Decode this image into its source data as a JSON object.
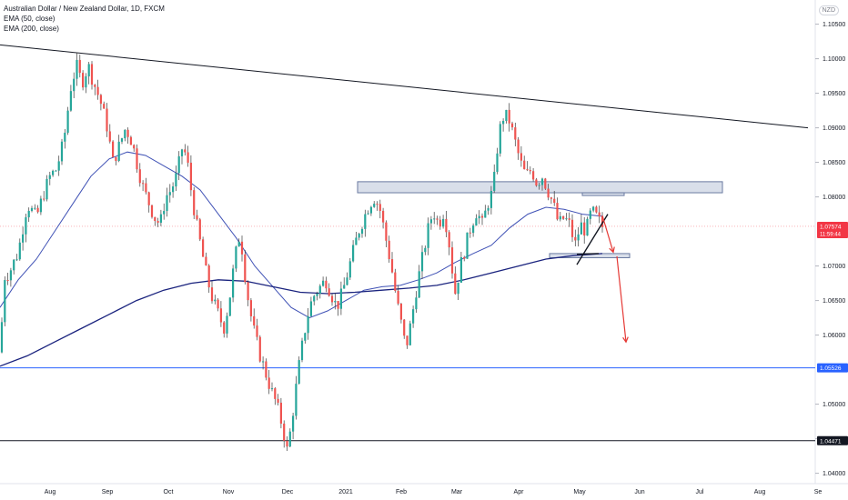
{
  "legend": {
    "symbol_line": "Australian Dollar / New Zealand Dollar, 1D, FXCM",
    "ema50": "EMA (50, close)",
    "ema200": "EMA (200, close)"
  },
  "currency_badge": "NZD",
  "chart_data": {
    "type": "candlestick",
    "y_ticks": [
      "1.10500",
      "1.10000",
      "1.09500",
      "1.09000",
      "1.08500",
      "1.08000",
      "1.07000",
      "1.06500",
      "1.06000",
      "1.05000",
      "1.04500",
      "1.04000"
    ],
    "ylim": [
      1.0385,
      1.1085
    ],
    "x_ticks": [
      "Aug",
      "Sep",
      "Oct",
      "Nov",
      "Dec",
      "2021",
      "Feb",
      "Mar",
      "Apr",
      "May",
      "Jun",
      "Jul",
      "Aug",
      "Se"
    ],
    "price_labels": [
      {
        "value": 1.07574,
        "text": "1.07574",
        "subtext": "11:59:44",
        "color": "#f23645"
      },
      {
        "value": 1.05526,
        "text": "1.05526",
        "color": "#2962ff"
      },
      {
        "value": 1.04471,
        "text": "1.04471",
        "color": "#131722"
      }
    ],
    "close_path": [
      [
        0,
        1.0575
      ],
      [
        5,
        1.0685
      ],
      [
        10,
        1.069
      ],
      [
        20,
        1.072
      ],
      [
        30,
        1.079
      ],
      [
        40,
        1.077
      ],
      [
        48,
        1.0805
      ],
      [
        55,
        1.083
      ],
      [
        62,
        1.084
      ],
      [
        70,
        1.088
      ],
      [
        78,
        1.096
      ],
      [
        84,
        1.099
      ],
      [
        90,
        1.0965
      ],
      [
        97,
        1.099
      ],
      [
        103,
        1.0965
      ],
      [
        110,
        1.094
      ],
      [
        118,
        1.09
      ],
      [
        124,
        1.085
      ],
      [
        130,
        1.087
      ],
      [
        138,
        1.09
      ],
      [
        145,
        1.088
      ],
      [
        152,
        1.084
      ],
      [
        158,
        1.081
      ],
      [
        164,
        1.079
      ],
      [
        170,
        1.077
      ],
      [
        176,
        1.076
      ],
      [
        182,
        1.08
      ],
      [
        188,
        1.081
      ],
      [
        194,
        1.083
      ],
      [
        200,
        1.087
      ],
      [
        205,
        1.086
      ],
      [
        210,
        1.081
      ],
      [
        216,
        1.076
      ],
      [
        222,
        1.072
      ],
      [
        228,
        1.068
      ],
      [
        234,
        1.065
      ],
      [
        240,
        1.063
      ],
      [
        246,
        1.061
      ],
      [
        252,
        1.065
      ],
      [
        258,
        1.071
      ],
      [
        264,
        1.075
      ],
      [
        268,
        1.07
      ],
      [
        274,
        1.064
      ],
      [
        280,
        1.06
      ],
      [
        286,
        1.057
      ],
      [
        292,
        1.0545
      ],
      [
        298,
        1.052
      ],
      [
        304,
        1.05
      ],
      [
        310,
        1.047
      ],
      [
        316,
        1.043
      ],
      [
        322,
        1.049
      ],
      [
        328,
        1.055
      ],
      [
        334,
        1.06
      ],
      [
        340,
        1.064
      ],
      [
        346,
        1.066
      ],
      [
        352,
        1.067
      ],
      [
        358,
        1.068
      ],
      [
        364,
        1.066
      ],
      [
        370,
        1.064
      ],
      [
        376,
        1.066
      ],
      [
        382,
        1.069
      ],
      [
        388,
        1.072
      ],
      [
        394,
        1.075
      ],
      [
        400,
        1.077
      ],
      [
        406,
        1.079
      ],
      [
        412,
        1.08
      ],
      [
        418,
        1.078
      ],
      [
        424,
        1.074
      ],
      [
        430,
        1.07
      ],
      [
        436,
        1.065
      ],
      [
        442,
        1.061
      ],
      [
        446,
        1.058
      ],
      [
        452,
        1.062
      ],
      [
        458,
        1.067
      ],
      [
        464,
        1.071
      ],
      [
        470,
        1.075
      ],
      [
        476,
        1.078
      ],
      [
        482,
        1.076
      ],
      [
        488,
        1.078
      ],
      [
        494,
        1.073
      ],
      [
        500,
        1.066
      ],
      [
        506,
        1.07
      ],
      [
        512,
        1.073
      ],
      [
        518,
        1.076
      ],
      [
        524,
        1.078
      ],
      [
        530,
        1.076
      ],
      [
        536,
        1.079
      ],
      [
        542,
        1.081
      ],
      [
        548,
        1.089
      ],
      [
        554,
        1.092
      ],
      [
        560,
        1.091
      ],
      [
        566,
        1.088
      ],
      [
        572,
        1.085
      ],
      [
        578,
        1.083
      ],
      [
        584,
        1.084
      ],
      [
        590,
        1.082
      ],
      [
        596,
        1.083
      ],
      [
        602,
        1.081
      ],
      [
        608,
        1.079
      ],
      [
        614,
        1.076
      ],
      [
        620,
        1.077
      ],
      [
        626,
        1.076
      ],
      [
        632,
        1.073
      ],
      [
        638,
        1.076
      ],
      [
        644,
        1.075
      ],
      [
        650,
        1.078
      ],
      [
        656,
        1.077
      ],
      [
        662,
        1.0757
      ]
    ],
    "ema50": [
      [
        0,
        1.064
      ],
      [
        20,
        1.068
      ],
      [
        40,
        1.071
      ],
      [
        60,
        1.075
      ],
      [
        80,
        1.079
      ],
      [
        100,
        1.083
      ],
      [
        120,
        1.0855
      ],
      [
        140,
        1.0865
      ],
      [
        160,
        1.086
      ],
      [
        180,
        1.0845
      ],
      [
        200,
        1.083
      ],
      [
        220,
        1.081
      ],
      [
        240,
        1.0775
      ],
      [
        260,
        1.074
      ],
      [
        280,
        1.07
      ],
      [
        300,
        1.067
      ],
      [
        320,
        1.064
      ],
      [
        340,
        1.0625
      ],
      [
        360,
        1.0635
      ],
      [
        380,
        1.065
      ],
      [
        400,
        1.0665
      ],
      [
        420,
        1.067
      ],
      [
        440,
        1.0672
      ],
      [
        460,
        1.068
      ],
      [
        480,
        1.069
      ],
      [
        500,
        1.0705
      ],
      [
        520,
        1.0718
      ],
      [
        540,
        1.073
      ],
      [
        560,
        1.0755
      ],
      [
        580,
        1.0775
      ],
      [
        600,
        1.0785
      ],
      [
        620,
        1.0782
      ],
      [
        640,
        1.0775
      ],
      [
        662,
        1.0772
      ]
    ],
    "ema200": [
      [
        0,
        1.0555
      ],
      [
        30,
        1.057
      ],
      [
        60,
        1.059
      ],
      [
        90,
        1.061
      ],
      [
        120,
        1.063
      ],
      [
        150,
        1.065
      ],
      [
        180,
        1.0665
      ],
      [
        210,
        1.0675
      ],
      [
        240,
        1.068
      ],
      [
        270,
        1.0678
      ],
      [
        300,
        1.067
      ],
      [
        330,
        1.0662
      ],
      [
        360,
        1.066
      ],
      [
        390,
        1.0662
      ],
      [
        420,
        1.0665
      ],
      [
        450,
        1.0668
      ],
      [
        480,
        1.0672
      ],
      [
        510,
        1.068
      ],
      [
        540,
        1.069
      ],
      [
        570,
        1.07
      ],
      [
        600,
        1.071
      ],
      [
        630,
        1.0715
      ],
      [
        662,
        1.0718
      ]
    ],
    "trendline": [
      [
        0,
        1.102
      ],
      [
        888,
        1.09
      ]
    ],
    "horizontal_lines": [
      {
        "value": 1.05526,
        "color": "#2962ff"
      },
      {
        "value": 1.04471,
        "color": "#131722"
      }
    ],
    "zones": [
      {
        "x1": 393,
        "x2": 794,
        "y1": 1.0822,
        "y2": 1.0806
      },
      {
        "x1": 640,
        "x2": 686,
        "y1": 1.0806,
        "y2": 1.0802
      },
      {
        "x1": 604,
        "x2": 692,
        "y1": 1.0718,
        "y2": 1.0712
      }
    ],
    "annotations": {
      "wedge_lines": [
        [
          [
            634,
            1.0702
          ],
          [
            668,
            1.0775
          ]
        ],
        [
          [
            634,
            1.0717
          ],
          [
            658,
            1.0718
          ]
        ]
      ],
      "arrows": [
        {
          "from": [
            662,
            1.0773
          ],
          "to": [
            674,
            1.072
          ]
        },
        {
          "from": [
            678,
            1.0714
          ],
          "to": [
            688,
            1.059
          ]
        }
      ]
    }
  }
}
